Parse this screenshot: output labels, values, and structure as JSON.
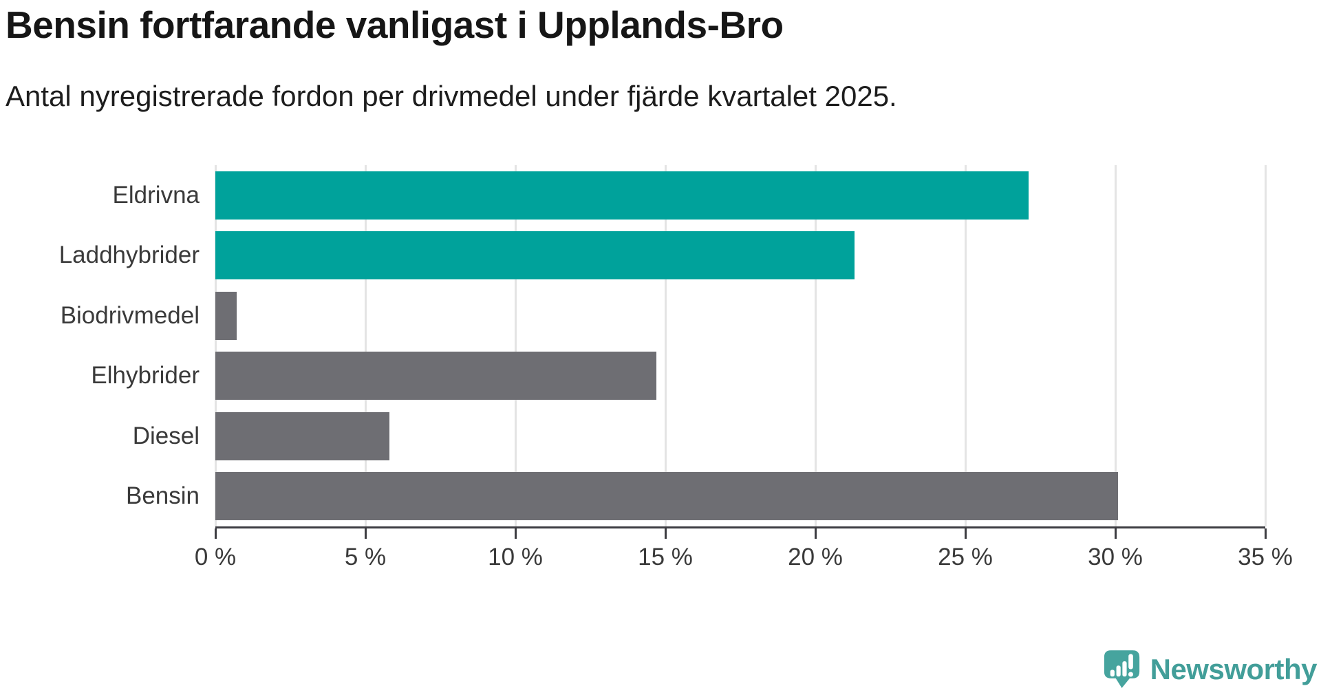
{
  "header": {
    "title": "Bensin fortfarande vanligast i Upplands-Bro",
    "subtitle": "Antal nyregistrerade fordon per drivmedel under fjärde kvartalet 2025."
  },
  "chart_data": {
    "type": "bar",
    "orientation": "horizontal",
    "title": "Bensin fortfarande vanligast i Upplands-Bro",
    "subtitle": "Antal nyregistrerade fordon per drivmedel under fjärde kvartalet 2025.",
    "categories": [
      "Eldrivna",
      "Laddhybrider",
      "Biodrivmedel",
      "Elhybrider",
      "Diesel",
      "Bensin"
    ],
    "values": [
      27.1,
      21.3,
      0.7,
      14.7,
      5.8,
      30.1
    ],
    "unit": "%",
    "xlim": [
      0,
      35
    ],
    "x_tick_labels": [
      "0 %",
      "5 %",
      "10 %",
      "15 %",
      "20 %",
      "25 %",
      "30 %",
      "35 %"
    ],
    "grid": "vertical-on",
    "legend": "none",
    "bar_colors": [
      "#00a29b",
      "#00a29b",
      "#6e6e73",
      "#6e6e73",
      "#6e6e73",
      "#6e6e73"
    ],
    "highlight_color": "#00a29b",
    "default_color": "#6e6e73",
    "axis_color": "#3d3d42",
    "gridline_color": "#e4e4e4"
  },
  "footer": {
    "logo_text": "Newsworthy",
    "logo_icon": "newsworthy-speech-bubble-chart-icon",
    "logo_color": "#429e99"
  }
}
